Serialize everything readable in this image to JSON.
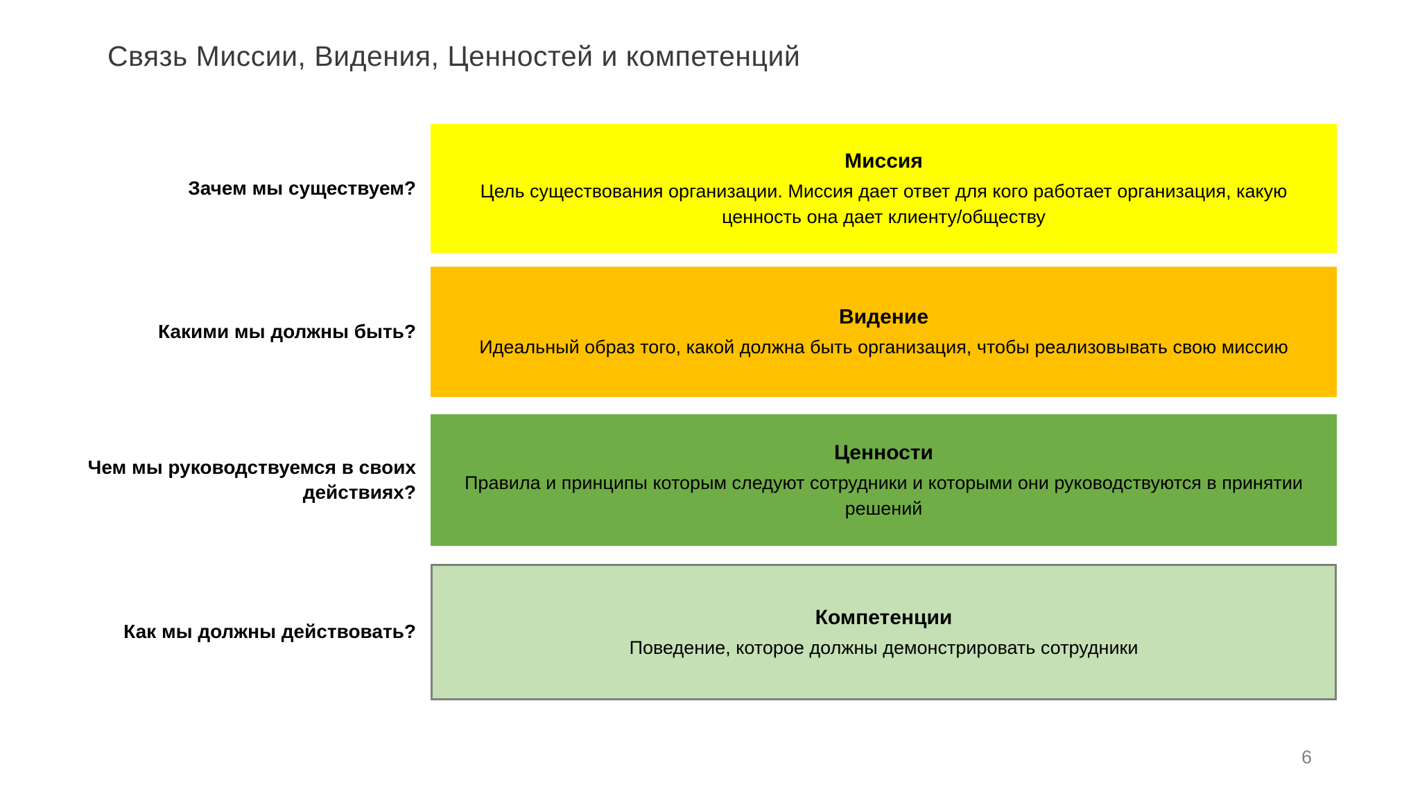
{
  "slide": {
    "title": "Связь Миссии, Видения, Ценностей и компетенций",
    "page_number": "6",
    "rows": [
      {
        "question": "Зачем мы существуем?",
        "heading": "Миссия",
        "body": "Цель существования организации. Миссия дает ответ для кого работает организация, какую ценность она дает клиенту/обществу",
        "color": "#FFFF00"
      },
      {
        "question": "Какими мы должны быть?",
        "heading": "Видение",
        "body": "Идеальный образ того, какой должна быть организация, чтобы реализовывать свою миссию",
        "color": "#FFC000"
      },
      {
        "question": "Чем мы руководствуемся в своих действиях?",
        "heading": "Ценности",
        "body": "Правила и принципы которым следуют сотрудники и которыми они руководствуются в принятии решений",
        "color": "#70AD47"
      },
      {
        "question": "Как мы должны действовать?",
        "heading": "Компетенции",
        "body": "Поведение, которое должны демонстрировать сотрудники",
        "color": "#C5E0B4",
        "border_color": "#7F7F7F"
      }
    ]
  }
}
